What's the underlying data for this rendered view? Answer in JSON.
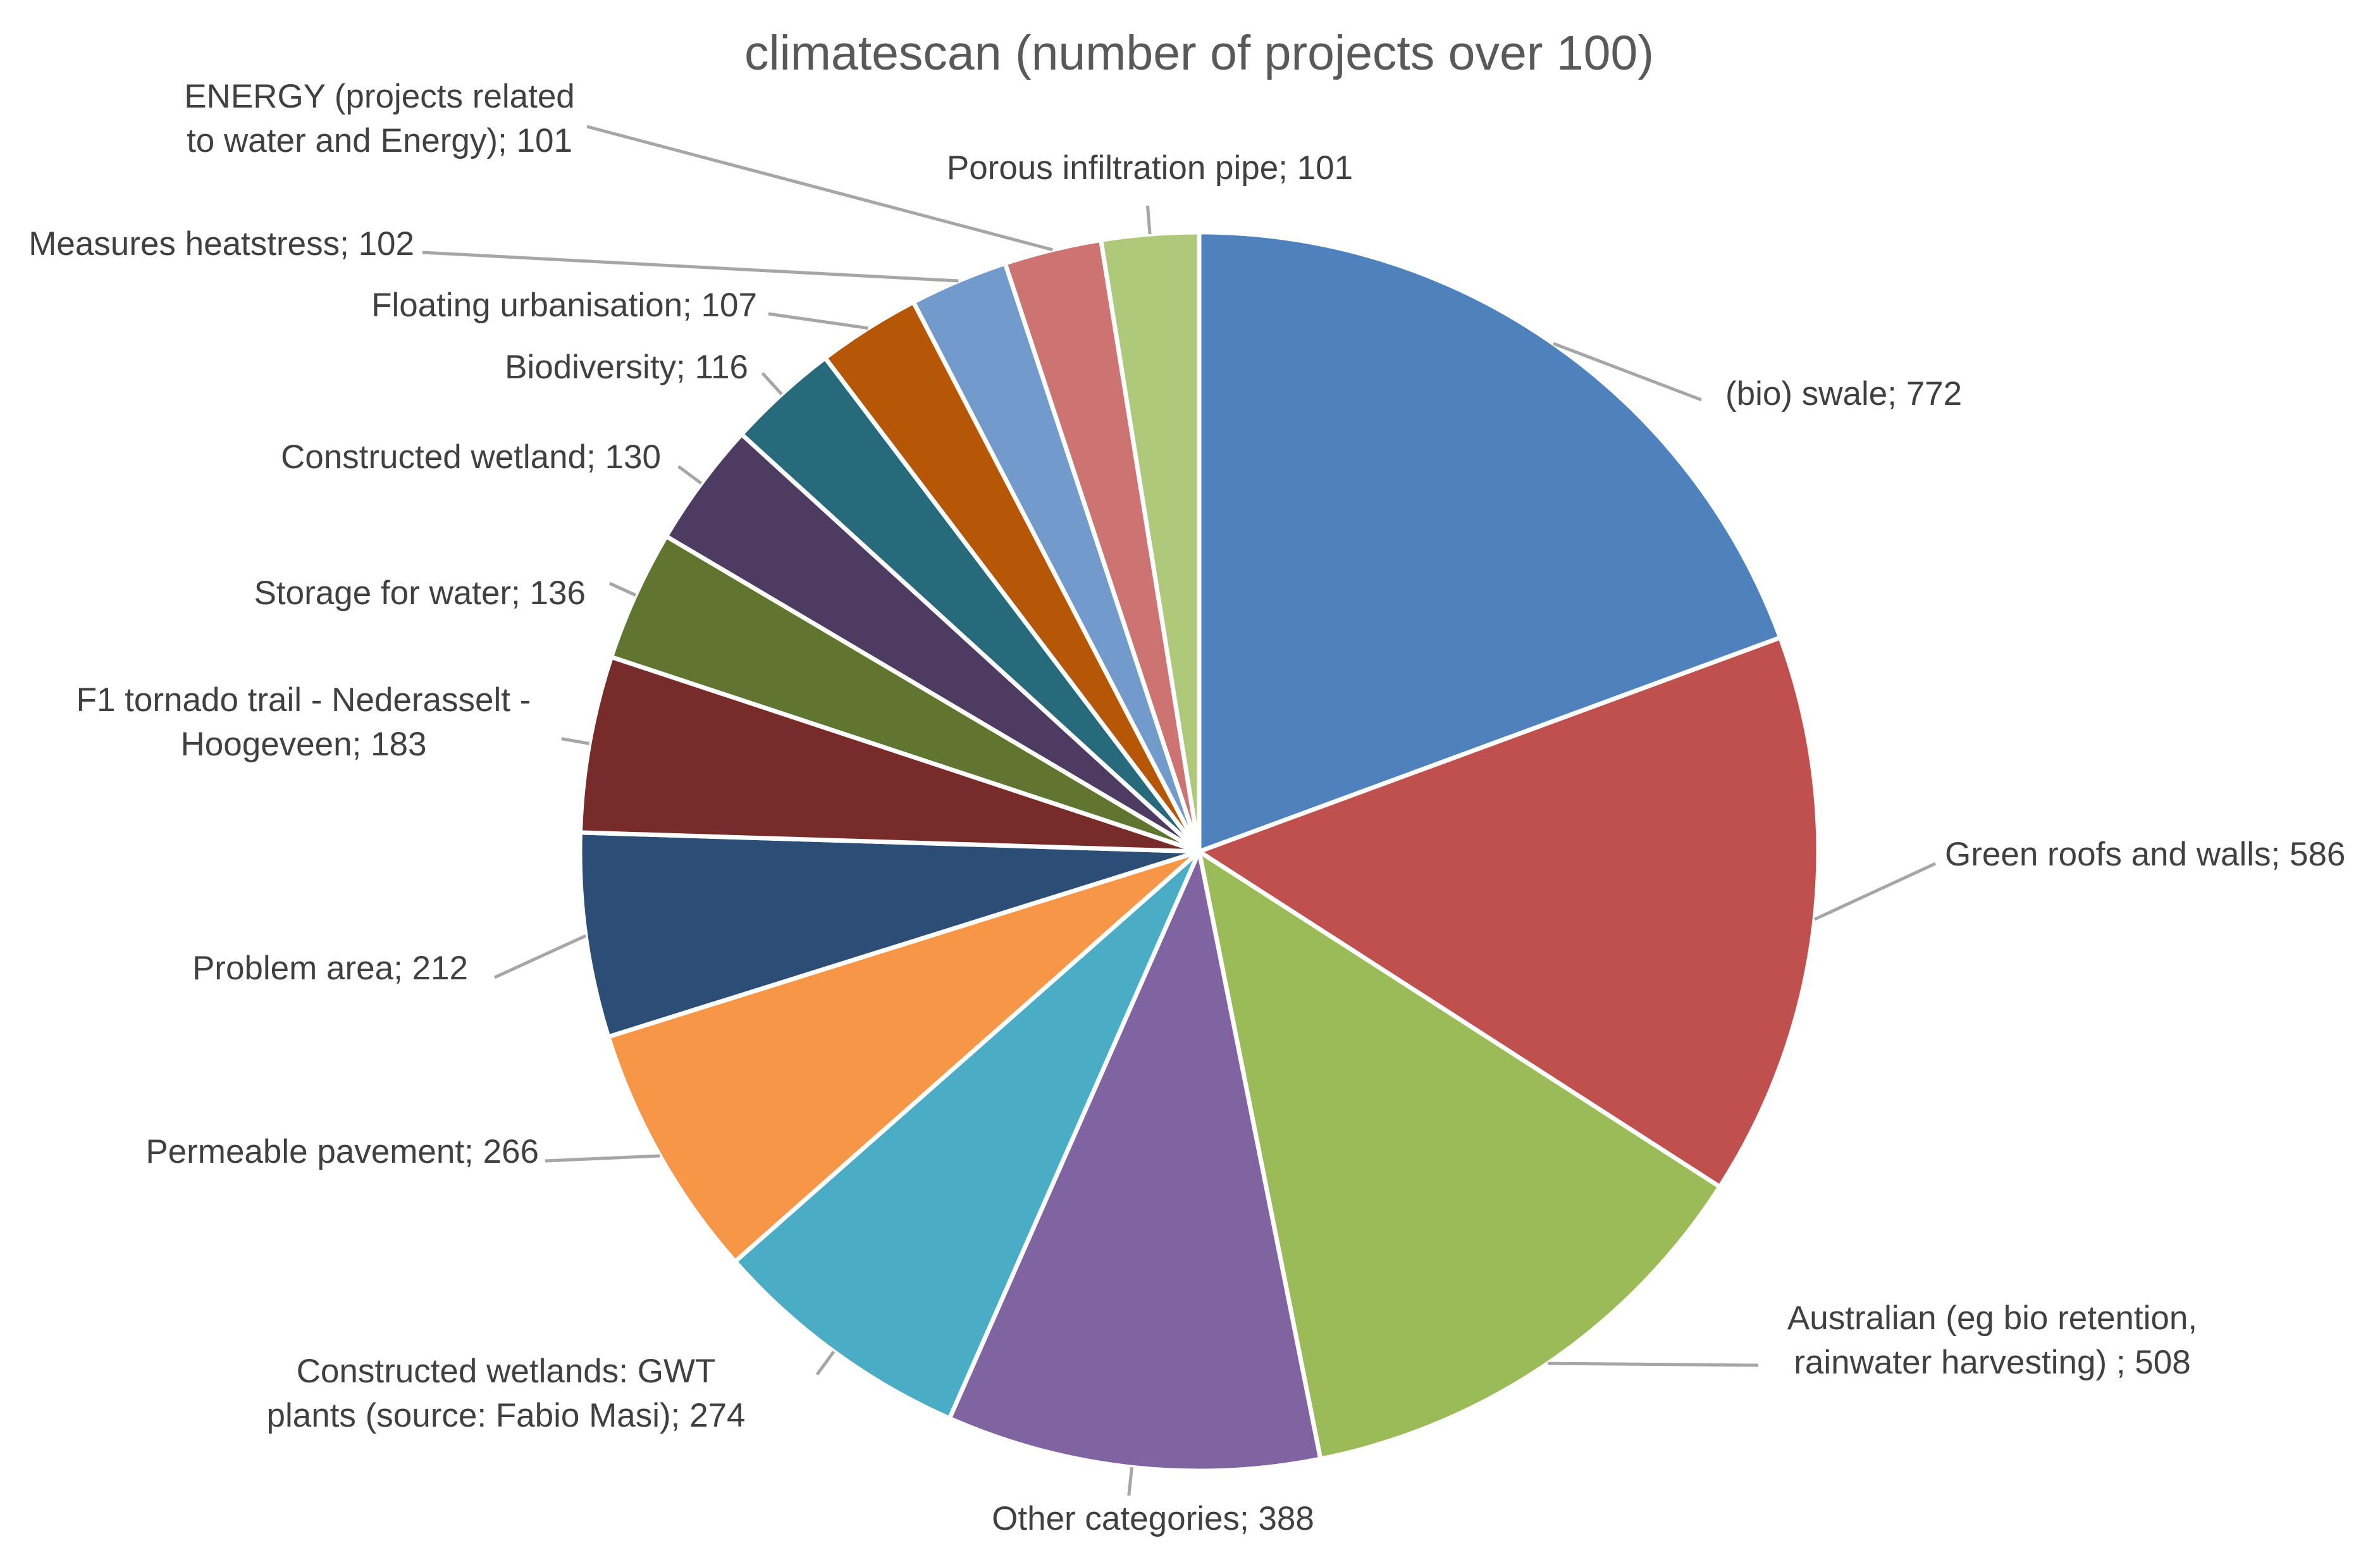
{
  "chart_data": {
    "type": "pie",
    "title": "climatescan (number of projects over 100)",
    "slices": [
      {
        "label": "(bio) swale; 772",
        "name": "(bio) swale",
        "value": 772,
        "color": "#4F81BD"
      },
      {
        "label": "Green roofs and walls; 586",
        "name": "Green roofs and walls",
        "value": 586,
        "color": "#C0504D"
      },
      {
        "label": "Australian (eg bio retention,\nrainwater harvesting) ; 508",
        "name": "Australian (eg bio retention, rainwater harvesting)",
        "value": 508,
        "color": "#9BBB59"
      },
      {
        "label": "Other categories; 388",
        "name": "Other categories",
        "value": 388,
        "color": "#8064A2"
      },
      {
        "label": "Constructed wetlands: GWT\nplants (source: Fabio Masi); 274",
        "name": "Constructed wetlands: GWT plants (source: Fabio Masi)",
        "value": 274,
        "color": "#4BACC6"
      },
      {
        "label": "Permeable pavement; 266",
        "name": "Permeable pavement",
        "value": 266,
        "color": "#F79646"
      },
      {
        "label": "Problem area; 212",
        "name": "Problem area",
        "value": 212,
        "color": "#2C4D75"
      },
      {
        "label": "F1 tornado trail - Nederasselt -\nHoogeveen; 183",
        "name": "F1 tornado trail - Nederasselt - Hoogeveen",
        "value": 183,
        "color": "#772C2A"
      },
      {
        "label": "Storage for water; 136",
        "name": "Storage for water",
        "value": 136,
        "color": "#5F7530"
      },
      {
        "label": "Constructed wetland; 130",
        "name": "Constructed wetland",
        "value": 130,
        "color": "#4D3B62"
      },
      {
        "label": "Biodiversity; 116",
        "name": "Biodiversity",
        "value": 116,
        "color": "#276A7C"
      },
      {
        "label": "Floating urbanisation; 107",
        "name": "Floating urbanisation",
        "value": 107,
        "color": "#B65708"
      },
      {
        "label": "Measures heatstress; 102",
        "name": "Measures heatstress",
        "value": 102,
        "color": "#729ACA"
      },
      {
        "label": "ENERGY (projects related\nto water and Energy); 101",
        "name": "ENERGY (projects related to water and Energy)",
        "value": 101,
        "color": "#CD7371"
      },
      {
        "label": "Porous infiltration pipe; 101",
        "name": "Porous infiltration pipe",
        "value": 101,
        "color": "#AFC97A"
      }
    ],
    "start_angle_deg": 0,
    "direction": "clockwise",
    "legend": "none",
    "data_labels": "outside with leader lines"
  }
}
